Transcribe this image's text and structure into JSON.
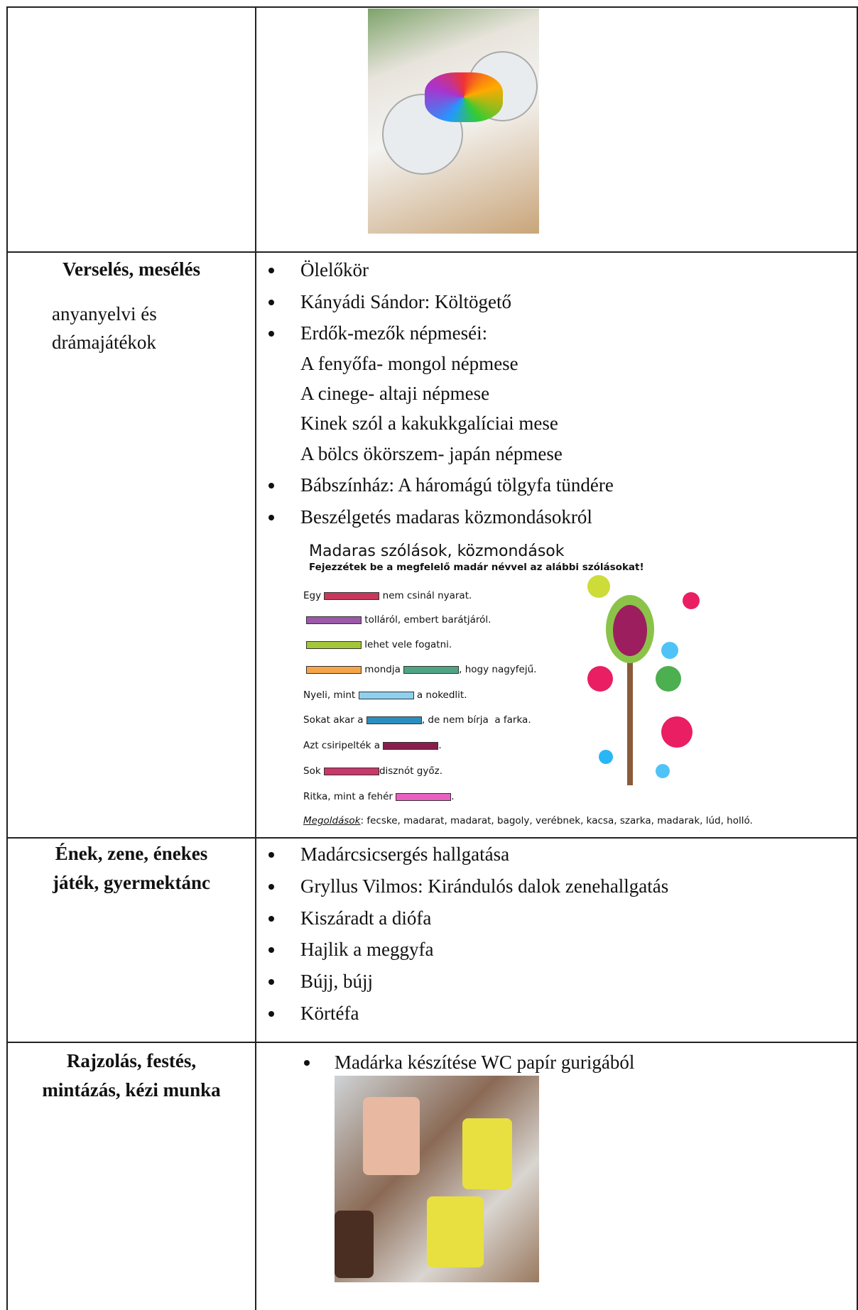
{
  "rows": [
    {
      "label": [],
      "items": []
    },
    {
      "label": [
        {
          "text": "Verselés, mesélés",
          "bold": true
        },
        {
          "text": "anyanyelvi és",
          "bold": false
        },
        {
          "text": "drámajátékok",
          "bold": false
        }
      ],
      "items": [
        {
          "text": "Ölelőkör",
          "bullet": true
        },
        {
          "text": "Kányádi Sándor: Költögető",
          "bullet": true
        },
        {
          "text": "Erdők-mezők népmeséi:",
          "bullet": true
        },
        {
          "text": "A fenyőfa- mongol népmese",
          "bullet": false
        },
        {
          "text": "A cinege- altaji népmese",
          "bullet": false
        },
        {
          "text": "Kinek szól a kakukkgalíciai mese",
          "bullet": false
        },
        {
          "text": "A bölcs ökörszem- japán népmese",
          "bullet": false
        },
        {
          "text": "Bábszínház: A háromágú tölgyfa tündére",
          "bullet": true
        },
        {
          "text": "Beszélgetés madaras közmondásokról",
          "bullet": true
        }
      ]
    },
    {
      "label": [
        {
          "text": "Ének, zene, énekes",
          "bold": true
        },
        {
          "text": "játék, gyermektánc",
          "bold": true
        }
      ],
      "items": [
        {
          "text": "Madárcsicsergés hallgatása",
          "bullet": true
        },
        {
          "text": "Gryllus Vilmos: Kirándulós dalok zenehallgatás",
          "bullet": true
        },
        {
          "text": "Kiszáradt a diófa",
          "bullet": true
        },
        {
          "text": "Hajlik a meggyfa",
          "bullet": true
        },
        {
          "text": "Bújj, bújj",
          "bullet": true
        },
        {
          "text": "Körtéfa",
          "bullet": true
        }
      ]
    },
    {
      "label": [
        {
          "text": "Rajzolás, festés,",
          "bold": true
        },
        {
          "text": "mintázás, kézi munka",
          "bold": true
        }
      ],
      "items": [
        {
          "text": "Madárka készítése WC papír gurigából",
          "bullet": true
        }
      ]
    }
  ],
  "worksheet": {
    "title": "Madaras szólások, közmondások",
    "instruction": "Fejezzétek be a megfelelő madár névvel az alábbi szólásokat!",
    "lines": [
      [
        "Egy ",
        {
          "color": "#c8385a"
        },
        " nem csinál nyarat."
      ],
      [
        {
          "color": "#9b59a8"
        },
        " tolláról, embert barátjáról."
      ],
      [
        {
          "color": "#a4c639"
        },
        " lehet vele fogatni."
      ],
      [
        {
          "color": "#f4a54a"
        },
        " mondja ",
        {
          "color": "#4fa583"
        },
        ", hogy nagyfejű."
      ],
      [
        "Nyeli, mint ",
        {
          "color": "#8fd0ee"
        },
        " a nokedlit."
      ],
      [
        "Sokat akar a ",
        {
          "color": "#2a8fc0"
        },
        ", de nem bírja  a farka."
      ],
      [
        "Azt csiripelték a ",
        {
          "color": "#8a1e4a"
        },
        "."
      ],
      [
        "Sok ",
        {
          "color": "#c8386a"
        },
        "disznót győz."
      ],
      [
        "Ritka, mint a fehér ",
        {
          "color": "#e860c0"
        },
        "."
      ]
    ],
    "solutions_label": "Megoldások",
    "solutions": ": fecske, madarat, madarat, bagoly, verébnek, kacsa, szarka, madarak, lúd, holló."
  }
}
